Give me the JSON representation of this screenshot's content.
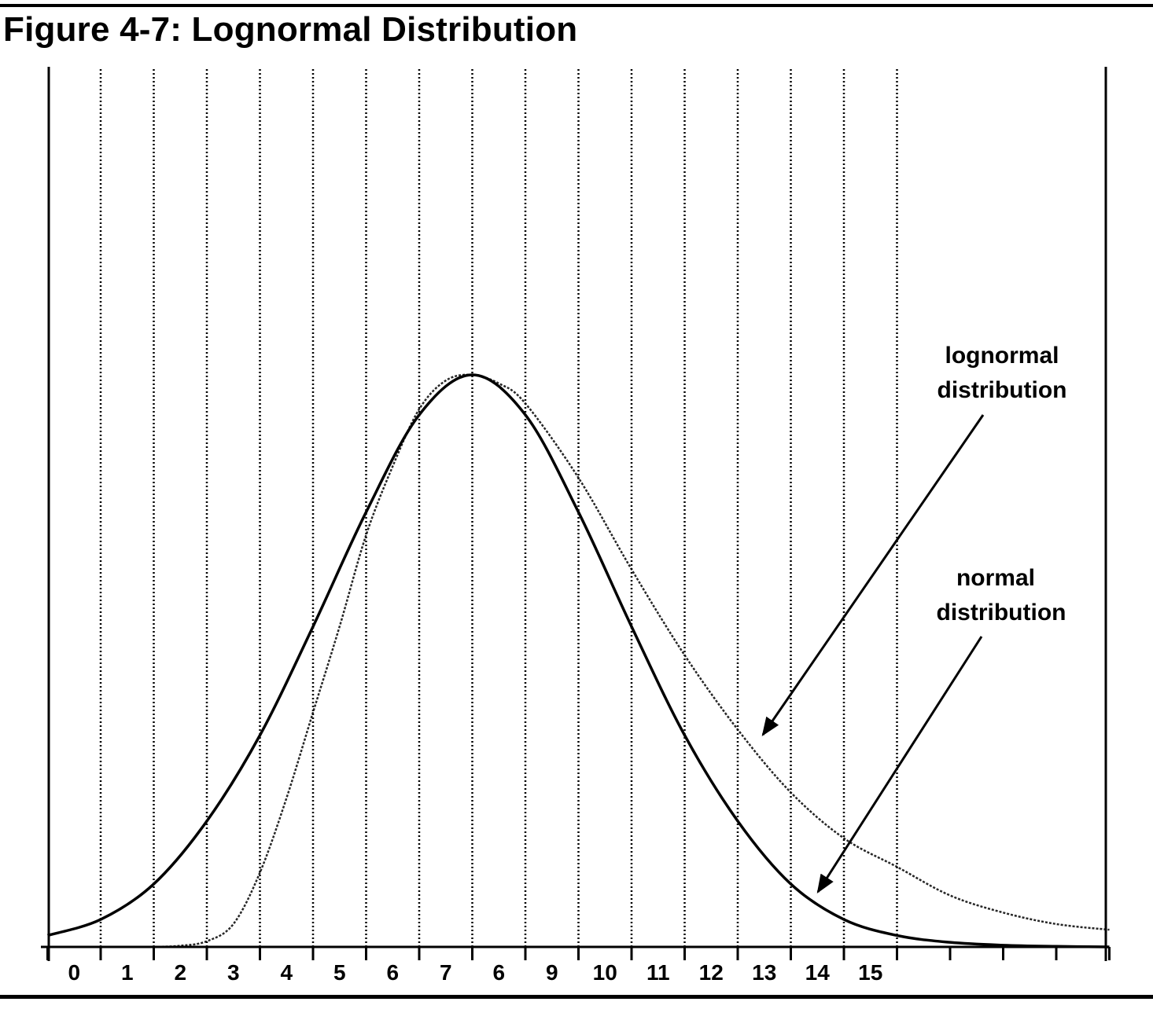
{
  "page": {
    "title": "Figure 4-7: Lognormal Distribution"
  },
  "chart_data": {
    "type": "line",
    "title": "Figure 4-7: Lognormal Distribution",
    "xlabel": "",
    "ylabel": "",
    "x_tick_labels": [
      "0",
      "1",
      "2",
      "3",
      "4",
      "5",
      "6",
      "7",
      "6",
      "9",
      "10",
      "11",
      "12",
      "13",
      "14",
      "15"
    ],
    "xlim": [
      -1,
      19
    ],
    "ylim": [
      0,
      1
    ],
    "grid": "vertical dotted lines at each integer tick",
    "series": [
      {
        "name": "normal distribution",
        "style": "solid",
        "x": [
          -1,
          0,
          1,
          2,
          3,
          4,
          5,
          6,
          7,
          8,
          9,
          10,
          11,
          12,
          13,
          14,
          15,
          16,
          17,
          18,
          19
        ],
        "y": [
          0.02,
          0.048,
          0.11,
          0.22,
          0.37,
          0.56,
          0.76,
          0.93,
          1.0,
          0.93,
          0.76,
          0.56,
          0.37,
          0.22,
          0.11,
          0.048,
          0.02,
          0.008,
          0.003,
          0.001,
          0.0
        ]
      },
      {
        "name": "lognormal distribution",
        "style": "dotted",
        "x": [
          1,
          1.5,
          2,
          2.5,
          3,
          3.5,
          4,
          4.5,
          5,
          5.5,
          6,
          6.5,
          7,
          7.5,
          8,
          9,
          10,
          11,
          12,
          13,
          14,
          15,
          16,
          17,
          18,
          19
        ],
        "y": [
          0.0,
          0.002,
          0.01,
          0.04,
          0.13,
          0.26,
          0.41,
          0.56,
          0.72,
          0.84,
          0.94,
          0.99,
          1.0,
          0.985,
          0.95,
          0.82,
          0.66,
          0.51,
          0.38,
          0.27,
          0.19,
          0.14,
          0.09,
          0.06,
          0.04,
          0.03
        ]
      }
    ],
    "annotations": [
      {
        "label_line1": "lognormal",
        "label_line2": "distribution",
        "points_to": "lognormal distribution"
      },
      {
        "label_line1": "normal",
        "label_line2": "distribution",
        "points_to": "normal distribution"
      }
    ]
  }
}
